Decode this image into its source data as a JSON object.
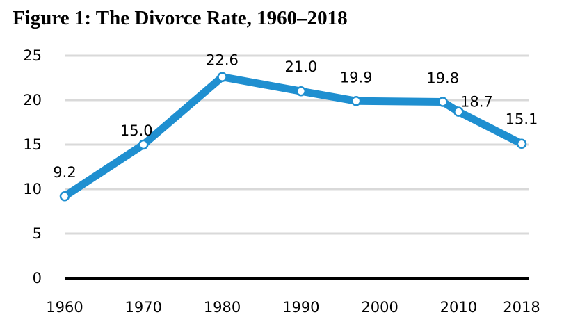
{
  "chart_data": {
    "type": "line",
    "title": "Figure 1: The Divorce Rate, 1960–2018",
    "xlabel": "",
    "ylabel": "",
    "x": [
      1960,
      1970,
      1980,
      1990,
      1997,
      2008,
      2010,
      2018
    ],
    "x_ticks": [
      1960,
      1970,
      1980,
      1990,
      2000,
      2010,
      2018
    ],
    "y_ticks": [
      0,
      5,
      10,
      15,
      20,
      25
    ],
    "ylim": [
      0,
      25
    ],
    "grid": true,
    "legend": "none",
    "series": [
      {
        "values": [
          9.2,
          15.0,
          22.6,
          21.0,
          19.9,
          19.8,
          18.7,
          15.1
        ],
        "labels": [
          "9.2",
          "15.0",
          "22.6",
          "21.0",
          "19.9",
          "19.8",
          "18.7",
          "15.1"
        ]
      }
    ],
    "colors": {
      "line": "#1f8fd0",
      "marker_fill": "#ffffff",
      "grid": "#d9d9d9",
      "axis": "#000000",
      "text": "#000000"
    }
  }
}
